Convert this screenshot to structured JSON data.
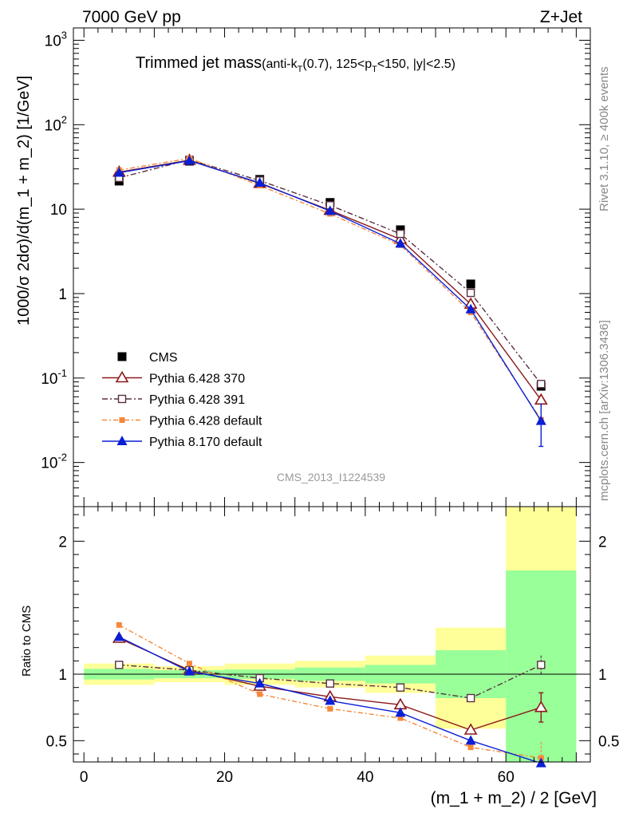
{
  "header": {
    "left": "7000 GeV pp",
    "right": "Z+Jet",
    "title_main": "Trimmed jet mass",
    "title_sub": "(anti-k",
    "title_sub_k_index": "T",
    "title_sub_mid": "(0.7), 125<p",
    "title_sub_p_index": "T",
    "title_sub_end": "<150, |y|<2.5)"
  },
  "side_labels": {
    "rivet": "Rivet 3.1.10, ≥ 400k events",
    "mcplots": "mcplots.cern.ch [arXiv:1306.3436]"
  },
  "analysis_id": "CMS_2013_I1224539",
  "colors": {
    "cms": "#000000",
    "p370": "#8b1a1a",
    "p391": "#5a3040",
    "p6def": "#f5883a",
    "p8": "#0a1fd6",
    "band_yellow": "#ffff99",
    "band_green": "#99ff99"
  },
  "chart_data": [
    {
      "type": "line",
      "yscale": "log",
      "ylabel": "1000/σ 2dσ)/d(m_1 + m_2) [1/GeV]",
      "ylim": [
        0.003,
        1400
      ],
      "xlim": [
        -1.5,
        72
      ],
      "y_ticks": [
        {
          "base": "10",
          "exp": "-2",
          "value": 0.01
        },
        {
          "base": "10",
          "exp": "-1",
          "value": 0.1
        },
        {
          "base": "1",
          "exp": "",
          "value": 1
        },
        {
          "base": "10",
          "exp": "",
          "value": 10
        },
        {
          "base": "10",
          "exp": "2",
          "value": 100
        },
        {
          "base": "10",
          "exp": "3",
          "value": 1000
        }
      ],
      "x": [
        5,
        15,
        25,
        35,
        45,
        55,
        65
      ],
      "bin_edges": [
        0,
        10,
        20,
        30,
        40,
        50,
        60,
        70
      ],
      "series": [
        {
          "key": "cms",
          "name": "CMS",
          "values": [
            21.5,
            37,
            22.5,
            12,
            5.7,
            1.3,
            0.08
          ]
        },
        {
          "key": "p370",
          "name": "Pythia 6.428 370",
          "values": [
            27.5,
            38,
            20.2,
            9.7,
            4.4,
            0.75,
            0.055
          ]
        },
        {
          "key": "p391",
          "name": "Pythia 6.428 391",
          "values": [
            23.5,
            38.5,
            21.8,
            11.1,
            5.1,
            1.02,
            0.085
          ]
        },
        {
          "key": "p6def",
          "name": "Pythia 6.428 default",
          "values": [
            29,
            40,
            19,
            8.8,
            3.75,
            0.6,
            0.032
          ]
        },
        {
          "key": "p8",
          "name": "Pythia 8.170 default",
          "values": [
            27,
            37.5,
            20.5,
            9.5,
            3.9,
            0.65,
            0.031
          ]
        }
      ]
    },
    {
      "type": "line",
      "ylabel": "Ratio to CMS",
      "xlabel": "(m_1 + m_2) / 2 [GeV]",
      "ylim": [
        0.34,
        2.26
      ],
      "xlim": [
        -1.5,
        72
      ],
      "x_ticks": [
        0,
        20,
        40,
        60
      ],
      "y_ticks": [
        0.5,
        1,
        2
      ],
      "x": [
        5,
        15,
        25,
        35,
        45,
        55,
        65
      ],
      "bands": [
        {
          "x0": 0,
          "x1": 10,
          "green": [
            0.96,
            1.04
          ],
          "yellow": [
            0.92,
            1.08
          ]
        },
        {
          "x0": 10,
          "x1": 20,
          "green": [
            0.97,
            1.03
          ],
          "yellow": [
            0.94,
            1.06
          ]
        },
        {
          "x0": 20,
          "x1": 30,
          "green": [
            0.965,
            1.035
          ],
          "yellow": [
            0.92,
            1.08
          ]
        },
        {
          "x0": 30,
          "x1": 40,
          "green": [
            0.95,
            1.05
          ],
          "yellow": [
            0.9,
            1.1
          ]
        },
        {
          "x0": 40,
          "x1": 50,
          "green": [
            0.93,
            1.07
          ],
          "yellow": [
            0.86,
            1.14
          ]
        },
        {
          "x0": 50,
          "x1": 60,
          "green": [
            0.82,
            1.18
          ],
          "yellow": [
            0.59,
            1.35
          ]
        },
        {
          "x0": 60,
          "x1": 70,
          "green": [
            0.34,
            1.78
          ],
          "yellow": [
            0.34,
            2.26
          ]
        }
      ],
      "series": [
        {
          "key": "p370",
          "name": "Pythia 6.428 370",
          "values": [
            1.27,
            1.03,
            0.91,
            0.83,
            0.77,
            0.58,
            0.75
          ]
        },
        {
          "key": "p391",
          "name": "Pythia 6.428 391",
          "values": [
            1.07,
            1.03,
            0.97,
            0.93,
            0.9,
            0.82,
            1.07
          ]
        },
        {
          "key": "p6def",
          "name": "Pythia 6.428 default",
          "values": [
            1.37,
            1.08,
            0.85,
            0.74,
            0.67,
            0.45,
            0.37
          ]
        },
        {
          "key": "p8",
          "name": "Pythia 8.170 default",
          "values": [
            1.28,
            1.02,
            0.93,
            0.8,
            0.71,
            0.5,
            0.33
          ]
        }
      ]
    }
  ]
}
